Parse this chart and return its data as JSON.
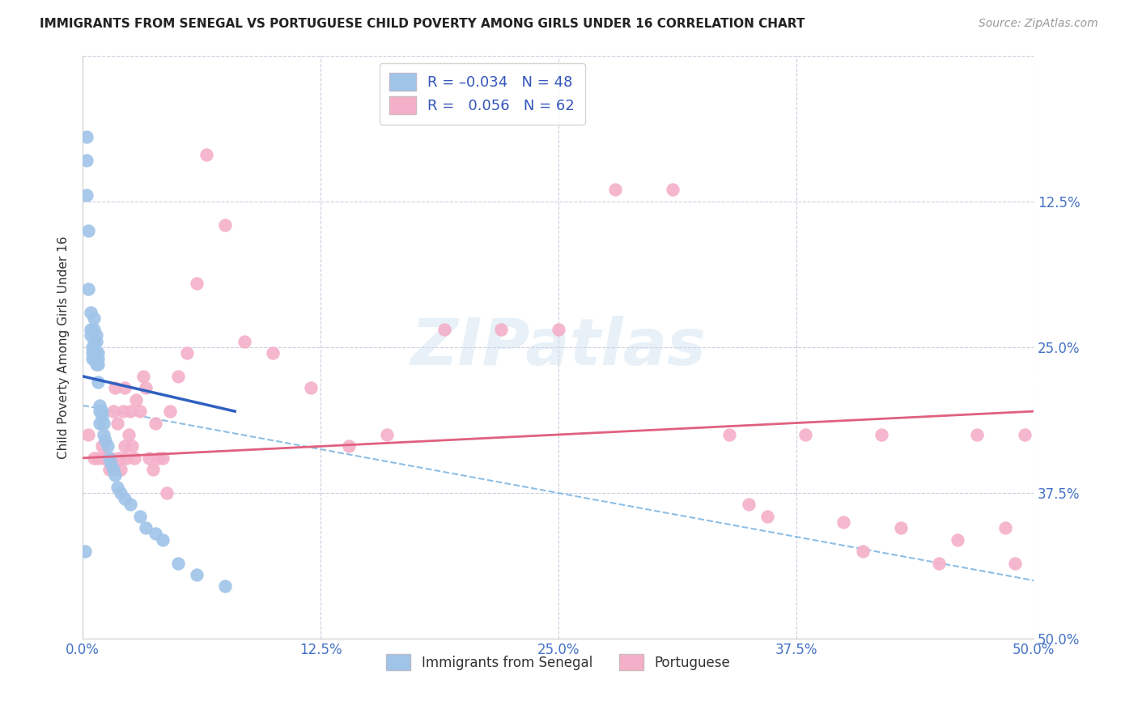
{
  "title": "IMMIGRANTS FROM SENEGAL VS PORTUGUESE CHILD POVERTY AMONG GIRLS UNDER 16 CORRELATION CHART",
  "source": "Source: ZipAtlas.com",
  "ylabel": "Child Poverty Among Girls Under 16",
  "xlim": [
    0,
    0.5
  ],
  "ylim": [
    0,
    0.5
  ],
  "xtick_vals": [
    0.0,
    0.125,
    0.25,
    0.375,
    0.5
  ],
  "xtick_labels": [
    "0.0%",
    "12.5%",
    "25.0%",
    "37.5%",
    "50.0%"
  ],
  "ytick_vals": [
    0.0,
    0.125,
    0.25,
    0.375,
    0.5
  ],
  "right_ytick_labels": [
    "50.0%",
    "37.5%",
    "25.0%",
    "12.5%",
    ""
  ],
  "senegal_R": -0.034,
  "senegal_N": 48,
  "portuguese_R": 0.056,
  "portuguese_N": 62,
  "senegal_color": "#a0c4e8",
  "portuguese_color": "#f4b0c8",
  "senegal_line_color": "#3060c0",
  "portuguese_line_color": "#e06080",
  "watermark": "ZIPatlas",
  "senegal_x": [
    0.001,
    0.002,
    0.002,
    0.002,
    0.003,
    0.003,
    0.004,
    0.004,
    0.004,
    0.005,
    0.005,
    0.005,
    0.006,
    0.006,
    0.006,
    0.006,
    0.007,
    0.007,
    0.007,
    0.007,
    0.008,
    0.008,
    0.008,
    0.008,
    0.009,
    0.009,
    0.009,
    0.01,
    0.01,
    0.011,
    0.011,
    0.012,
    0.013,
    0.014,
    0.015,
    0.016,
    0.017,
    0.018,
    0.02,
    0.022,
    0.025,
    0.03,
    0.033,
    0.038,
    0.042,
    0.05,
    0.06,
    0.075
  ],
  "senegal_y": [
    0.075,
    0.43,
    0.41,
    0.38,
    0.35,
    0.3,
    0.28,
    0.265,
    0.26,
    0.25,
    0.245,
    0.24,
    0.275,
    0.265,
    0.255,
    0.24,
    0.26,
    0.255,
    0.245,
    0.235,
    0.245,
    0.24,
    0.235,
    0.22,
    0.2,
    0.195,
    0.185,
    0.195,
    0.19,
    0.185,
    0.175,
    0.17,
    0.165,
    0.155,
    0.15,
    0.145,
    0.14,
    0.13,
    0.125,
    0.12,
    0.115,
    0.105,
    0.095,
    0.09,
    0.085,
    0.065,
    0.055,
    0.045
  ],
  "portuguese_x": [
    0.003,
    0.006,
    0.008,
    0.01,
    0.011,
    0.012,
    0.013,
    0.014,
    0.015,
    0.016,
    0.017,
    0.018,
    0.019,
    0.02,
    0.021,
    0.022,
    0.022,
    0.023,
    0.024,
    0.025,
    0.026,
    0.027,
    0.028,
    0.03,
    0.032,
    0.033,
    0.035,
    0.037,
    0.038,
    0.04,
    0.042,
    0.044,
    0.046,
    0.05,
    0.055,
    0.06,
    0.065,
    0.075,
    0.085,
    0.1,
    0.12,
    0.14,
    0.16,
    0.19,
    0.22,
    0.25,
    0.28,
    0.31,
    0.34,
    0.36,
    0.38,
    0.4,
    0.42,
    0.43,
    0.45,
    0.46,
    0.47,
    0.485,
    0.49,
    0.495,
    0.35,
    0.41
  ],
  "portuguese_y": [
    0.175,
    0.155,
    0.155,
    0.165,
    0.155,
    0.155,
    0.155,
    0.145,
    0.155,
    0.195,
    0.215,
    0.185,
    0.155,
    0.145,
    0.195,
    0.215,
    0.165,
    0.155,
    0.175,
    0.195,
    0.165,
    0.155,
    0.205,
    0.195,
    0.225,
    0.215,
    0.155,
    0.145,
    0.185,
    0.155,
    0.155,
    0.125,
    0.195,
    0.225,
    0.245,
    0.305,
    0.415,
    0.355,
    0.255,
    0.245,
    0.215,
    0.165,
    0.175,
    0.265,
    0.265,
    0.265,
    0.385,
    0.385,
    0.175,
    0.105,
    0.175,
    0.1,
    0.175,
    0.095,
    0.065,
    0.085,
    0.175,
    0.095,
    0.065,
    0.175,
    0.115,
    0.075
  ]
}
